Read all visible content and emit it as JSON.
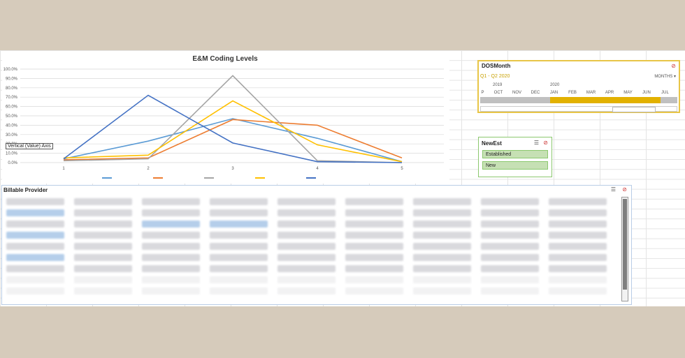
{
  "chart_data": {
    "type": "line",
    "title": "E&M Coding Levels",
    "categories": [
      "1",
      "2",
      "3",
      "4",
      "5"
    ],
    "ylim": [
      0,
      100
    ],
    "y_ticks": [
      "100.0%",
      "90.0%",
      "80.0%",
      "70.0%",
      "60.0%",
      "50.0%",
      "40.0%",
      "30.0%",
      "20.0%",
      "10.0%",
      "0.0%"
    ],
    "grid": true,
    "legend": "bottom",
    "series": [
      {
        "color": "#5b9bd5",
        "values": [
          4,
          23,
          47,
          26,
          1
        ]
      },
      {
        "color": "#ed7d31",
        "values": [
          3,
          5,
          46,
          40,
          5
        ]
      },
      {
        "color": "#a5a5a5",
        "values": [
          2,
          4,
          93,
          2,
          0
        ]
      },
      {
        "color": "#ffc000",
        "values": [
          5,
          8,
          66,
          19,
          1
        ]
      },
      {
        "color": "#4472c4",
        "values": [
          4,
          72,
          21,
          1,
          0
        ]
      }
    ]
  },
  "tooltip": "Vertical (Value) Axis",
  "slicer_dos": {
    "title": "DOSMonth",
    "range": "Q1 - Q2 2020",
    "level": "MONTHS ▾",
    "years": [
      "2019",
      "2020"
    ],
    "months": [
      "P",
      "OCT",
      "NOV",
      "DEC",
      "JAN",
      "FEB",
      "MAR",
      "APR",
      "MAY",
      "JUN",
      "JUL"
    ]
  },
  "slicer_new": {
    "title": "NewEst",
    "items": [
      "Established",
      "New"
    ]
  },
  "pivot": {
    "title": "Billable Provider"
  },
  "colors": {
    "accent": "#e8c547",
    "slicer_green": "#c6e0b4"
  }
}
